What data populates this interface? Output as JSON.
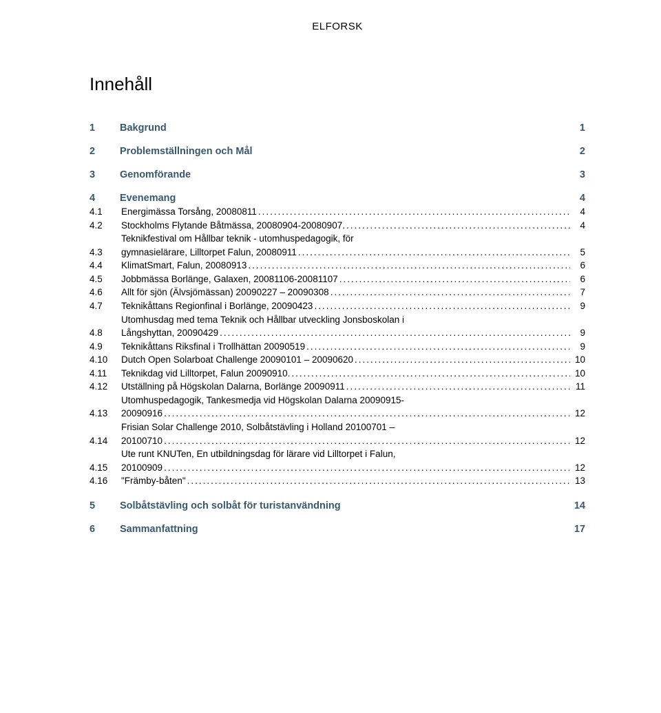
{
  "header": "ELFORSK",
  "title": "Innehåll",
  "colors": {
    "section_heading": "#36596e",
    "text": "#000000",
    "background": "#ffffff"
  },
  "typography": {
    "title_fontsize": 26,
    "section_fontsize": 14.5,
    "sub_fontsize": 13.5,
    "header_fontsize": 15
  },
  "sections": [
    {
      "num": "1",
      "title": "Bakgrund",
      "page": "1",
      "subs": []
    },
    {
      "num": "2",
      "title": "Problemställningen och Mål",
      "page": "2",
      "subs": []
    },
    {
      "num": "3",
      "title": "Genomförande",
      "page": "3",
      "subs": []
    },
    {
      "num": "4",
      "title": "Evenemang",
      "page": "4",
      "subs": [
        {
          "num": "4.1",
          "title": "Energimässa Torsång, 20080811",
          "page": "4"
        },
        {
          "num": "4.2",
          "title": "Stockholms Flytande Båtmässa, 20080904-20080907.",
          "page": "4"
        },
        {
          "num": "4.3",
          "title_pre": "Teknikfestival om Hållbar teknik - utomhuspedagogik, för",
          "title": "gymnasielärare, Lilltorpet Falun, 20080911",
          "page": "5"
        },
        {
          "num": "4.4",
          "title": "KlimatSmart, Falun, 20080913",
          "page": "6"
        },
        {
          "num": "4.5",
          "title": "Jobbmässa Borlänge, Galaxen, 20081106-20081107",
          "page": "6"
        },
        {
          "num": "4.6",
          "title": "Allt för sjön (Älvsjömässan) 20090227 – 20090308",
          "page": "7"
        },
        {
          "num": "4.7",
          "title": "Teknikåttans Regionfinal i Borlänge, 20090423",
          "page": "9"
        },
        {
          "num": "4.8",
          "title_pre": "Utomhusdag med tema Teknik och Hållbar utveckling Jonsboskolan i",
          "title": "Långshyttan, 20090429",
          "page": "9"
        },
        {
          "num": "4.9",
          "title": "Teknikåttans Riksfinal i Trollhättan 20090519",
          "page": "9"
        },
        {
          "num": "4.10",
          "title": "Dutch Open Solarboat Challenge 20090101 – 20090620",
          "page": "10"
        },
        {
          "num": "4.11",
          "title": "Teknikdag vid Lilltorpet, Falun 20090910.",
          "page": "10"
        },
        {
          "num": "4.12",
          "title": "Utställning på Högskolan Dalarna, Borlänge 20090911",
          "page": "11"
        },
        {
          "num": "4.13",
          "title_pre": "Utomhuspedagogik, Tankesmedja vid Högskolan Dalarna 20090915-",
          "title": "20090916",
          "page": "12"
        },
        {
          "num": "4.14",
          "title_pre": "Frisian Solar Challenge 2010, Solbåtstävling i Holland 20100701 –",
          "title": "20100710",
          "page": "12"
        },
        {
          "num": "4.15",
          "title_pre": "Ute runt KNUTen, En utbildningsdag för lärare vid Lilltorpet i Falun,",
          "title": "20100909",
          "page": "12"
        },
        {
          "num": "4.16",
          "title": "\"Främby-båten\"",
          "page": "13"
        }
      ]
    },
    {
      "num": "5",
      "title": "Solbåtstävling och solbåt för turistanvändning",
      "page": "14",
      "subs": []
    },
    {
      "num": "6",
      "title": "Sammanfattning",
      "page": "17",
      "subs": []
    }
  ]
}
